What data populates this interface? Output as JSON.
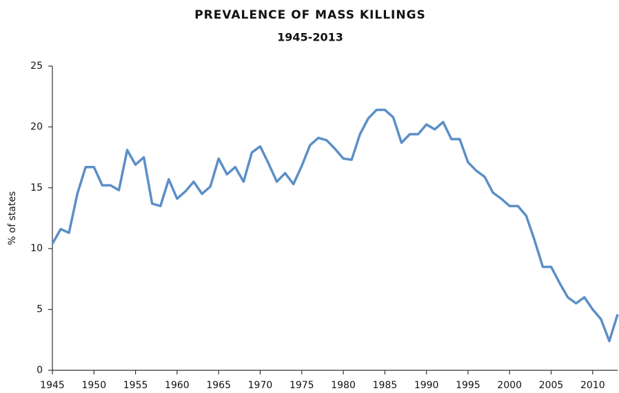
{
  "chart_data": {
    "type": "line",
    "title": "PREVALENCE OF MASS KILLINGS",
    "subtitle": "1945-2013",
    "y_label": "% of states",
    "x": [
      1945,
      1946,
      1947,
      1948,
      1949,
      1950,
      1951,
      1952,
      1953,
      1954,
      1955,
      1956,
      1957,
      1958,
      1959,
      1960,
      1961,
      1962,
      1963,
      1964,
      1965,
      1966,
      1967,
      1968,
      1969,
      1970,
      1971,
      1972,
      1973,
      1974,
      1975,
      1976,
      1977,
      1978,
      1979,
      1980,
      1981,
      1982,
      1983,
      1984,
      1985,
      1986,
      1987,
      1988,
      1989,
      1990,
      1991,
      1992,
      1993,
      1994,
      1995,
      1996,
      1997,
      1998,
      1999,
      2000,
      2001,
      2002,
      2003,
      2004,
      2005,
      2006,
      2007,
      2008,
      2009,
      2010,
      2011,
      2012,
      2013
    ],
    "series": [
      {
        "color": "#5b8fc7",
        "values": [
          10.4,
          11.6,
          11.3,
          14.5,
          16.7,
          16.7,
          15.2,
          15.2,
          14.8,
          18.1,
          16.9,
          17.5,
          13.7,
          13.5,
          15.7,
          14.1,
          14.7,
          15.5,
          14.5,
          15.1,
          17.4,
          16.1,
          16.7,
          15.5,
          17.9,
          18.4,
          17.0,
          15.5,
          16.2,
          15.3,
          16.8,
          18.5,
          19.1,
          18.9,
          18.2,
          17.4,
          17.3,
          19.4,
          20.7,
          21.4,
          21.4,
          20.8,
          18.7,
          19.4,
          19.4,
          20.2,
          19.8,
          20.4,
          19.0,
          19.0,
          17.1,
          16.4,
          15.9,
          14.6,
          14.1,
          13.5,
          13.5,
          12.7,
          10.7,
          8.5,
          8.5,
          7.2,
          6.0,
          5.5,
          6.0,
          5.0,
          4.2,
          2.4,
          4.6
        ]
      }
    ],
    "xlim": [
      1945,
      2013
    ],
    "xticks": [
      1945,
      1950,
      1955,
      1960,
      1965,
      1970,
      1975,
      1980,
      1985,
      1990,
      1995,
      2000,
      2005,
      2010
    ],
    "ylim": [
      0,
      25
    ],
    "yticks": [
      0,
      5,
      10,
      15,
      20,
      25
    ]
  }
}
